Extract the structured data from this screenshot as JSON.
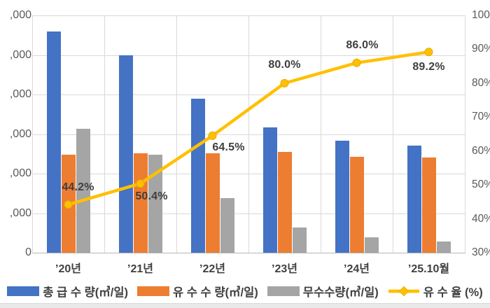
{
  "page": {
    "background_color": "#ffffff",
    "footer_strip_color": "#e9e9e9"
  },
  "chart_data": {
    "type": "bar",
    "subtype": "combo-bar-line-pareto",
    "title": "",
    "xlabel": "",
    "ylabel": "",
    "categories": [
      "’20년",
      "’21년",
      "’22년",
      "’23년",
      "’24년",
      "’25.10월"
    ],
    "series": [
      {
        "name": "총 급 수 량(㎥/일)",
        "type": "bar",
        "color": "#4472C4",
        "axis": "left",
        "values": [
          11200,
          10000,
          7800,
          6350,
          5650,
          5400
        ]
      },
      {
        "name": "유 수 수 량(㎥/일)",
        "type": "bar",
        "color": "#ED7D31",
        "axis": "left",
        "values": [
          4950,
          5040,
          5030,
          5080,
          4860,
          4820
        ]
      },
      {
        "name": "무수수량(㎥/일)",
        "type": "bar",
        "color": "#A5A5A5",
        "axis": "left",
        "values": [
          6250,
          4960,
          2770,
          1270,
          790,
          580
        ]
      },
      {
        "name": "유 수 율 (%)",
        "type": "line",
        "color": "#FFC000",
        "axis": "right",
        "values": [
          44.2,
          50.4,
          64.5,
          80.0,
          86.0,
          89.2
        ],
        "point_labels": [
          {
            "text": "44.2%",
            "dx": 14,
            "dy": -24
          },
          {
            "text": "50.4%",
            "dx": 16,
            "dy": 19
          },
          {
            "text": "64.5%",
            "dx": 23,
            "dy": 17
          },
          {
            "text": "80.0%",
            "dx": 0,
            "dy": -26
          },
          {
            "text": "86.0%",
            "dx": 8,
            "dy": -25
          },
          {
            "text": "89.2%",
            "dx": 0,
            "dy": 22
          }
        ]
      }
    ],
    "left_axis": {
      "min": 0,
      "max": 12000,
      "step": 2000,
      "visible_tick_labels": [
        ",000",
        ",000",
        ",000",
        ",000",
        ",000",
        ",000",
        "0"
      ],
      "note": "leading digits clipped at image edge"
    },
    "right_axis": {
      "min": 30,
      "max": 100,
      "step": 10,
      "tick_labels": [
        "100%",
        "90%",
        "80%",
        "70%",
        "60%",
        "50%",
        "40%",
        "30%"
      ]
    },
    "grid": true,
    "legend_position": "bottom"
  }
}
